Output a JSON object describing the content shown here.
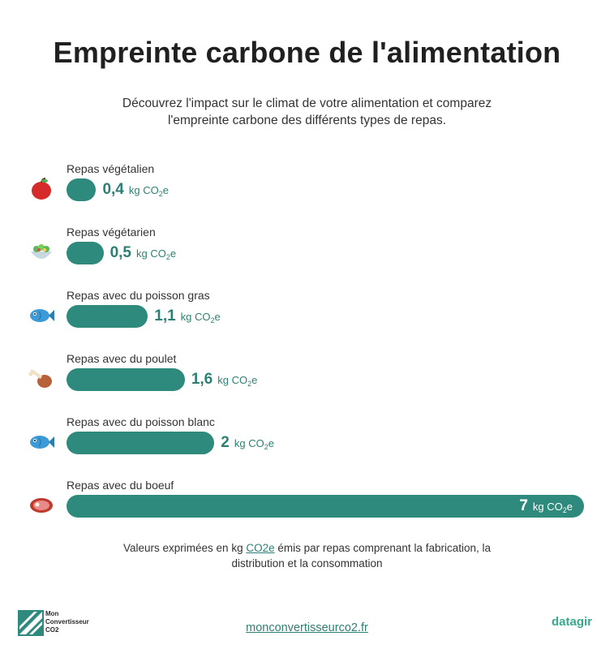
{
  "title": "Empreinte carbone de l'alimentation",
  "subtitle_line1": "Découvrez l'impact sur le climat de votre alimentation et comparez",
  "subtitle_line2": "l'empreinte carbone des différents types de repas.",
  "colors": {
    "bar": "#2e8a7c",
    "value_text": "#2e7f73",
    "title": "#202020"
  },
  "chart_data": {
    "type": "bar",
    "orientation": "horizontal",
    "categories": [
      "Repas végétalien",
      "Repas végétarien",
      "Repas avec du poisson gras",
      "Repas avec du poulet",
      "Repas avec du poisson blanc",
      "Repas avec du boeuf"
    ],
    "values": [
      0.4,
      0.5,
      1.1,
      1.6,
      2,
      7
    ],
    "value_labels": [
      "0,4",
      "0,5",
      "1,1",
      "1,6",
      "2",
      "7"
    ],
    "unit_prefix": "kg CO",
    "unit_sub": "2",
    "unit_suffix": "e",
    "icons": [
      "apple-icon",
      "salad-icon",
      "fish-icon",
      "chicken-leg-icon",
      "fish-icon",
      "steak-icon"
    ],
    "xlim": [
      0,
      7
    ]
  },
  "footnote": {
    "part1": "Valeurs exprimées en kg ",
    "link": "CO2e",
    "part2": " émis par repas comprenant la fabrication, la",
    "line2": "distribution et la consommation"
  },
  "footer": {
    "left_logo_text": "Mon\nConvertisseur\nCO2",
    "site": "monconvertisseurco2.fr",
    "right_logo": "datagir"
  }
}
